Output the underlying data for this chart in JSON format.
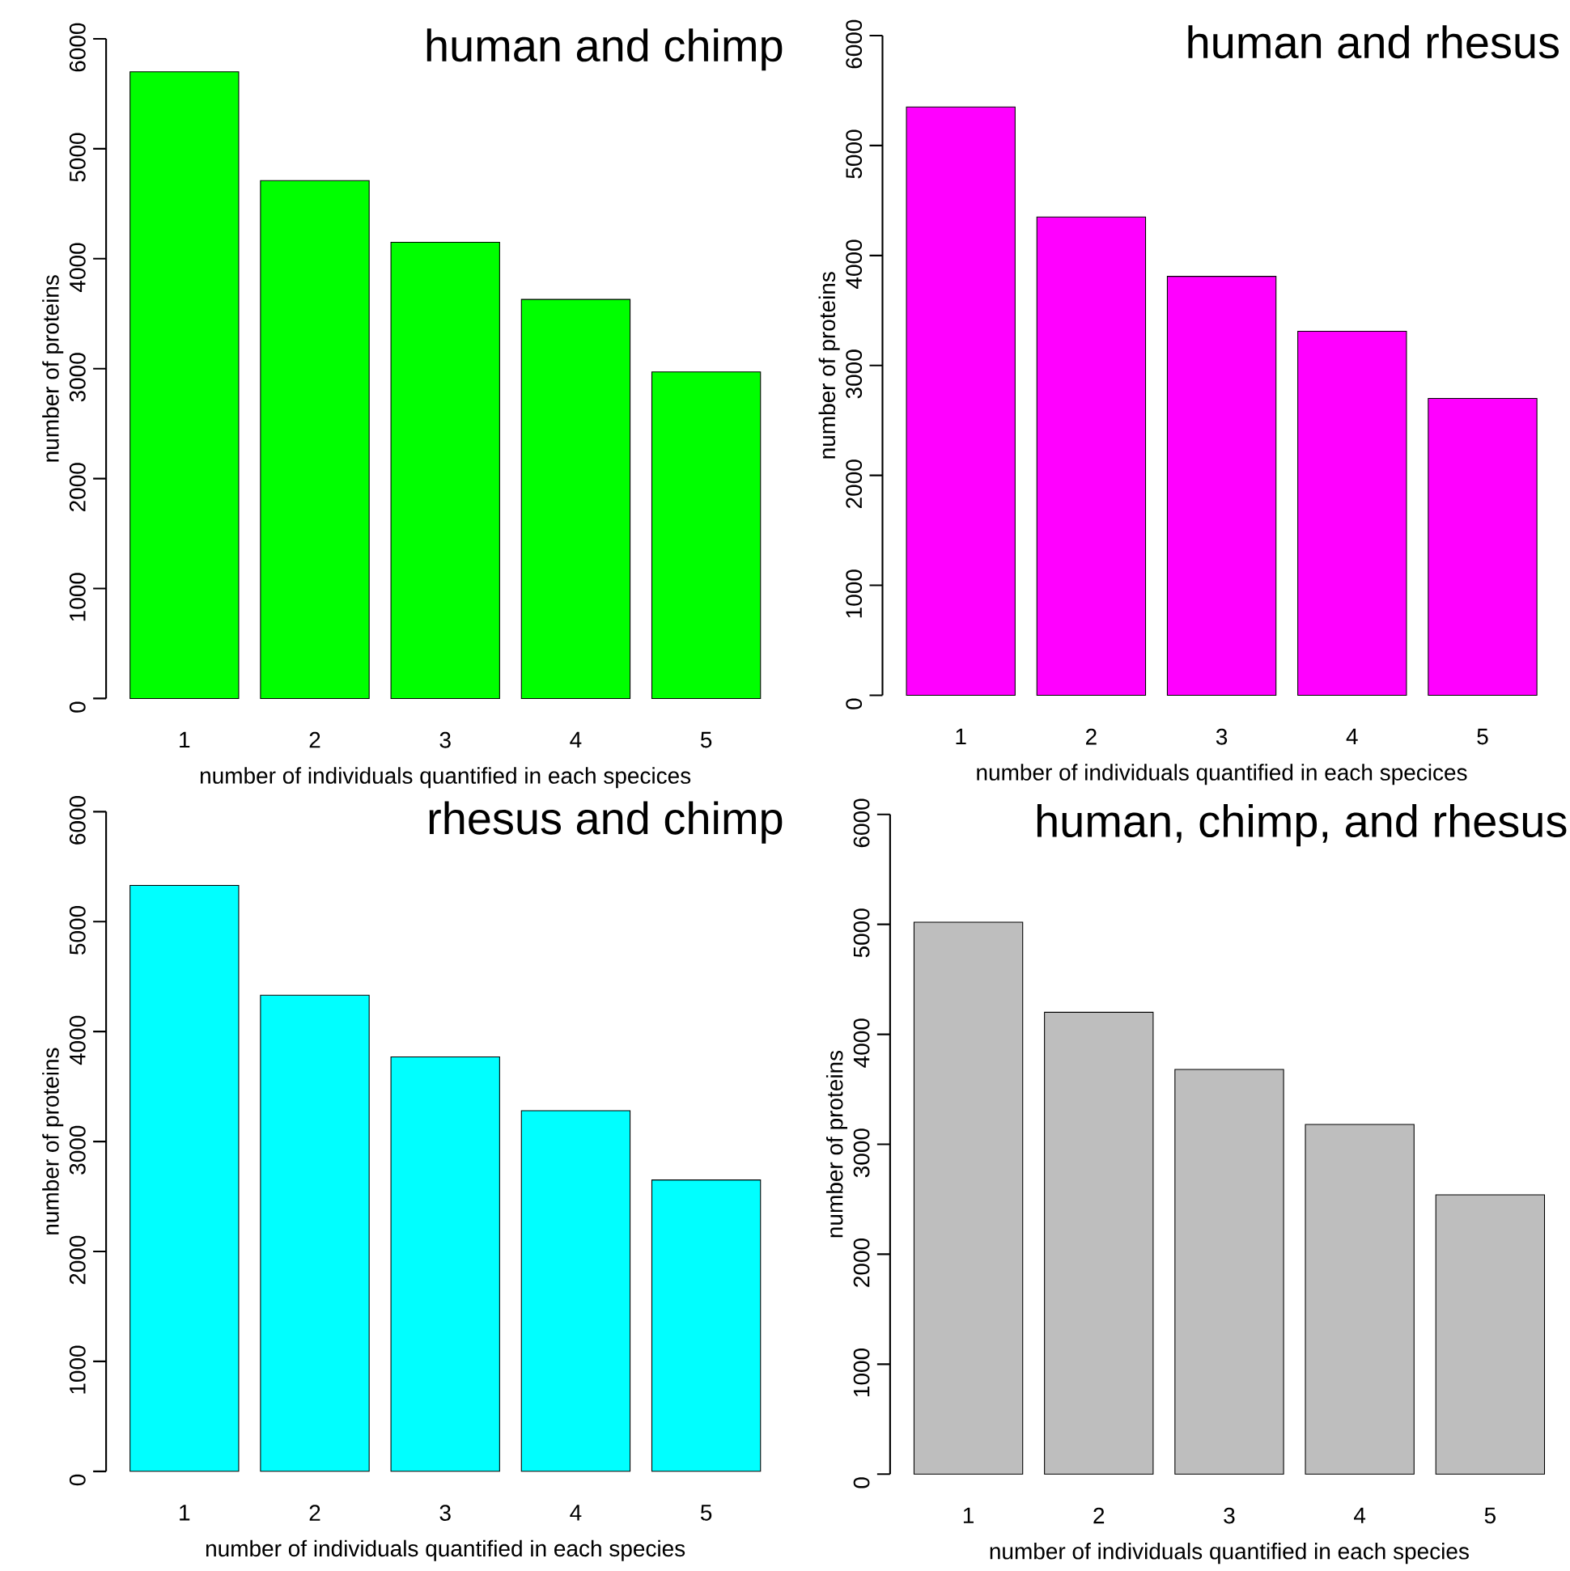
{
  "chart_data": [
    {
      "type": "bar",
      "title": "human and chimp",
      "xlabel": "number of individuals quantified in each specices",
      "ylabel": "number of proteins",
      "categories": [
        "1",
        "2",
        "3",
        "4",
        "5"
      ],
      "values": [
        5700,
        4710,
        4150,
        3630,
        2970
      ],
      "color": "#00ff00",
      "ylim": [
        0,
        6000
      ],
      "yticks": [
        0,
        1000,
        2000,
        3000,
        4000,
        5000,
        6000
      ]
    },
    {
      "type": "bar",
      "title": "human and rhesus",
      "xlabel": "number of individuals quantified in each specices",
      "ylabel": "number of proteins",
      "categories": [
        "1",
        "2",
        "3",
        "4",
        "5"
      ],
      "values": [
        5350,
        4350,
        3810,
        3310,
        2700
      ],
      "color": "#ff00ff",
      "ylim": [
        0,
        6000
      ],
      "yticks": [
        0,
        1000,
        2000,
        3000,
        4000,
        5000,
        6000
      ]
    },
    {
      "type": "bar",
      "title": "rhesus and chimp",
      "xlabel": "number of individuals quantified in each species",
      "ylabel": "number of proteins",
      "categories": [
        "1",
        "2",
        "3",
        "4",
        "5"
      ],
      "values": [
        5330,
        4330,
        3770,
        3280,
        2650
      ],
      "color": "#00ffff",
      "ylim": [
        0,
        6000
      ],
      "yticks": [
        0,
        1000,
        2000,
        3000,
        4000,
        5000,
        6000
      ]
    },
    {
      "type": "bar",
      "title": "human, chimp, and rhesus",
      "xlabel": "number of individuals quantified in each species",
      "ylabel": "number of proteins",
      "categories": [
        "1",
        "2",
        "3",
        "4",
        "5"
      ],
      "values": [
        5020,
        4200,
        3680,
        3180,
        2540
      ],
      "color": "#bebebe",
      "ylim": [
        0,
        6000
      ],
      "yticks": [
        0,
        1000,
        2000,
        3000,
        4000,
        5000,
        6000
      ]
    }
  ]
}
